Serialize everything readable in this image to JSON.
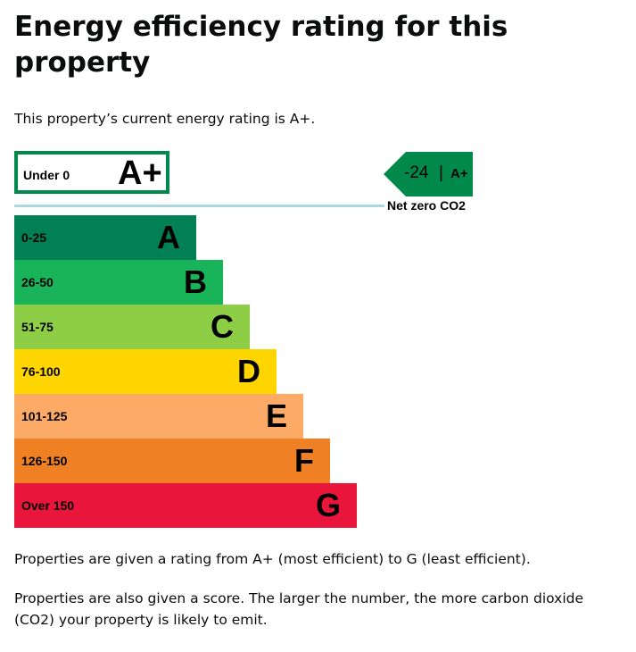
{
  "heading": "Energy efficiency rating for this property",
  "intro": "This property’s current energy rating is A+.",
  "current_band": {
    "range": "Under 0",
    "letter": "A+",
    "color": "#00894b"
  },
  "score_marker": {
    "score": "-24",
    "separator": "|",
    "band": "A+",
    "color": "#00894b"
  },
  "net_zero": {
    "label": "Net zero CO2",
    "line_color": "#a9d7e2"
  },
  "bands": [
    {
      "range": "0-25",
      "letter": "A",
      "color": "#008054"
    },
    {
      "range": "26-50",
      "letter": "B",
      "color": "#19b459"
    },
    {
      "range": "51-75",
      "letter": "C",
      "color": "#8dce46"
    },
    {
      "range": "76-100",
      "letter": "D",
      "color": "#ffd500"
    },
    {
      "range": "101-125",
      "letter": "E",
      "color": "#fcaa65"
    },
    {
      "range": "126-150",
      "letter": "F",
      "color": "#ef8023"
    },
    {
      "range": "Over 150",
      "letter": "G",
      "color": "#e9153b"
    }
  ],
  "paragraphs": [
    "Properties are given a rating from A+ (most efficient) to G (least efficient).",
    "Properties are also given a score. The larger the number, the more carbon dioxide (CO2) your property is likely to emit."
  ]
}
